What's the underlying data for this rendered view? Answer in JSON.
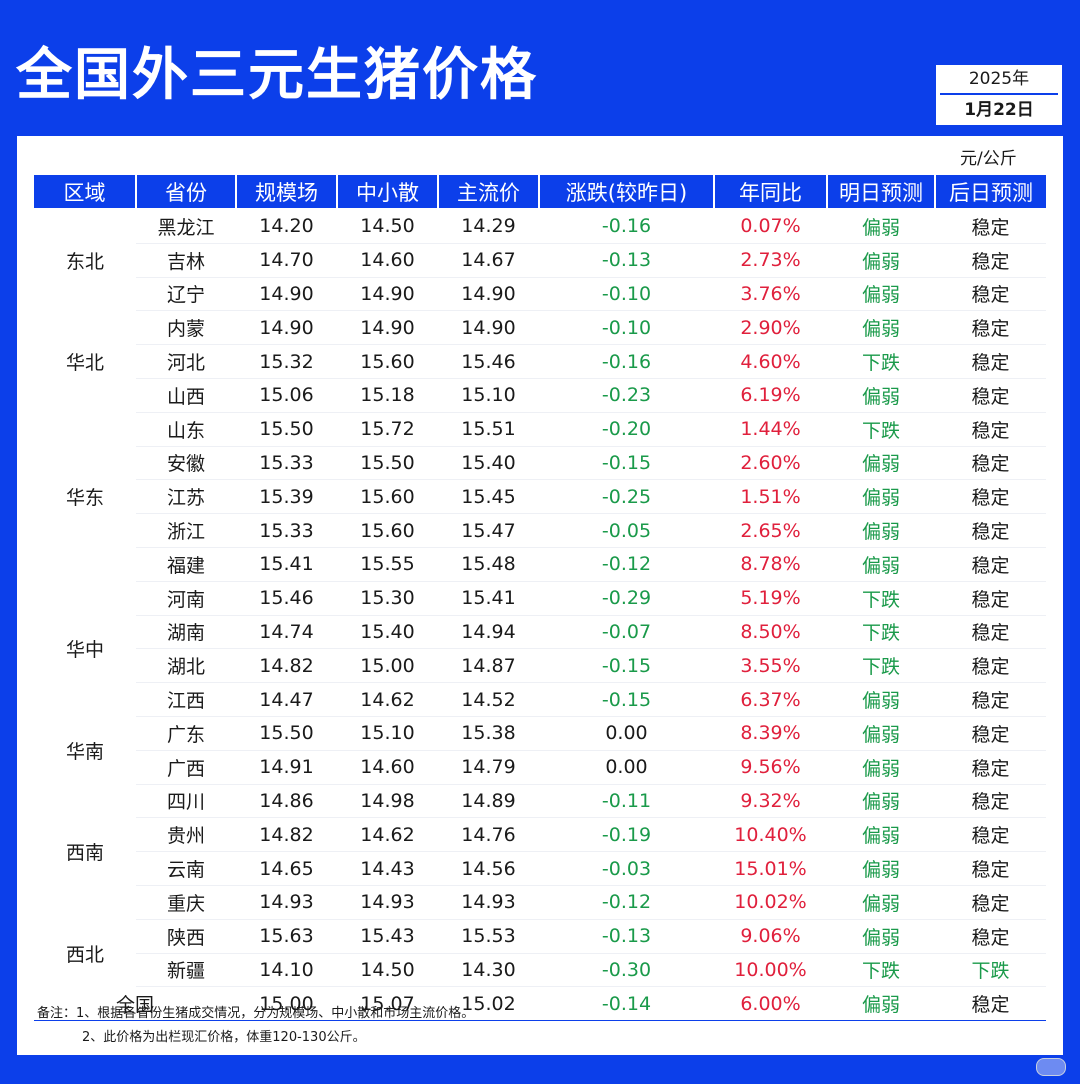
{
  "title": "全国外三元生猪价格",
  "date": {
    "year": "2025年",
    "monthday": "1月22日"
  },
  "unit": "元/公斤",
  "headers": [
    "区域",
    "省份",
    "规模场",
    "中小散",
    "主流价",
    "涨跌(较昨日)",
    "年同比",
    "明日预测",
    "后日预测"
  ],
  "regions": [
    {
      "name": "东北",
      "rows": [
        [
          "黑龙江",
          "14.20",
          "14.50",
          "14.29",
          "-0.16",
          "0.07%",
          "偏弱",
          "稳定"
        ],
        [
          "吉林",
          "14.70",
          "14.60",
          "14.67",
          "-0.13",
          "2.73%",
          "偏弱",
          "稳定"
        ],
        [
          "辽宁",
          "14.90",
          "14.90",
          "14.90",
          "-0.10",
          "3.76%",
          "偏弱",
          "稳定"
        ]
      ]
    },
    {
      "name": "华北",
      "rows": [
        [
          "内蒙",
          "14.90",
          "14.90",
          "14.90",
          "-0.10",
          "2.90%",
          "偏弱",
          "稳定"
        ],
        [
          "河北",
          "15.32",
          "15.60",
          "15.46",
          "-0.16",
          "4.60%",
          "下跌",
          "稳定"
        ],
        [
          "山西",
          "15.06",
          "15.18",
          "15.10",
          "-0.23",
          "6.19%",
          "偏弱",
          "稳定"
        ]
      ]
    },
    {
      "name": "华东",
      "rows": [
        [
          "山东",
          "15.50",
          "15.72",
          "15.51",
          "-0.20",
          "1.44%",
          "下跌",
          "稳定"
        ],
        [
          "安徽",
          "15.33",
          "15.50",
          "15.40",
          "-0.15",
          "2.60%",
          "偏弱",
          "稳定"
        ],
        [
          "江苏",
          "15.39",
          "15.60",
          "15.45",
          "-0.25",
          "1.51%",
          "偏弱",
          "稳定"
        ],
        [
          "浙江",
          "15.33",
          "15.60",
          "15.47",
          "-0.05",
          "2.65%",
          "偏弱",
          "稳定"
        ],
        [
          "福建",
          "15.41",
          "15.55",
          "15.48",
          "-0.12",
          "8.78%",
          "偏弱",
          "稳定"
        ]
      ]
    },
    {
      "name": "华中",
      "rows": [
        [
          "河南",
          "15.46",
          "15.30",
          "15.41",
          "-0.29",
          "5.19%",
          "下跌",
          "稳定"
        ],
        [
          "湖南",
          "14.74",
          "15.40",
          "14.94",
          "-0.07",
          "8.50%",
          "下跌",
          "稳定"
        ],
        [
          "湖北",
          "14.82",
          "15.00",
          "14.87",
          "-0.15",
          "3.55%",
          "下跌",
          "稳定"
        ],
        [
          "江西",
          "14.47",
          "14.62",
          "14.52",
          "-0.15",
          "6.37%",
          "偏弱",
          "稳定"
        ]
      ]
    },
    {
      "name": "华南",
      "rows": [
        [
          "广东",
          "15.50",
          "15.10",
          "15.38",
          "0.00",
          "8.39%",
          "偏弱",
          "稳定"
        ],
        [
          "广西",
          "14.91",
          "14.60",
          "14.79",
          "0.00",
          "9.56%",
          "偏弱",
          "稳定"
        ]
      ]
    },
    {
      "name": "西南",
      "rows": [
        [
          "四川",
          "14.86",
          "14.98",
          "14.89",
          "-0.11",
          "9.32%",
          "偏弱",
          "稳定"
        ],
        [
          "贵州",
          "14.82",
          "14.62",
          "14.76",
          "-0.19",
          "10.40%",
          "偏弱",
          "稳定"
        ],
        [
          "云南",
          "14.65",
          "14.43",
          "14.56",
          "-0.03",
          "15.01%",
          "偏弱",
          "稳定"
        ],
        [
          "重庆",
          "14.93",
          "14.93",
          "14.93",
          "-0.12",
          "10.02%",
          "偏弱",
          "稳定"
        ]
      ]
    },
    {
      "name": "西北",
      "rows": [
        [
          "陕西",
          "15.63",
          "15.43",
          "15.53",
          "-0.13",
          "9.06%",
          "偏弱",
          "稳定"
        ],
        [
          "新疆",
          "14.10",
          "14.50",
          "14.30",
          "-0.30",
          "10.00%",
          "下跌",
          "下跌"
        ]
      ]
    }
  ],
  "total": [
    "全国",
    "15.00",
    "15.07",
    "15.02",
    "-0.14",
    "6.00%",
    "偏弱",
    "稳定"
  ],
  "notes": [
    "备注：1、根据各省份生猪成交情况，分为规模场、中小散和市场主流价格。",
    "2、此价格为出栏现汇价格，体重120-130公斤。"
  ],
  "colors": {
    "brand_blue": "#0c3fea",
    "down_green": "#1a9a4a",
    "up_red": "#e0203c"
  }
}
